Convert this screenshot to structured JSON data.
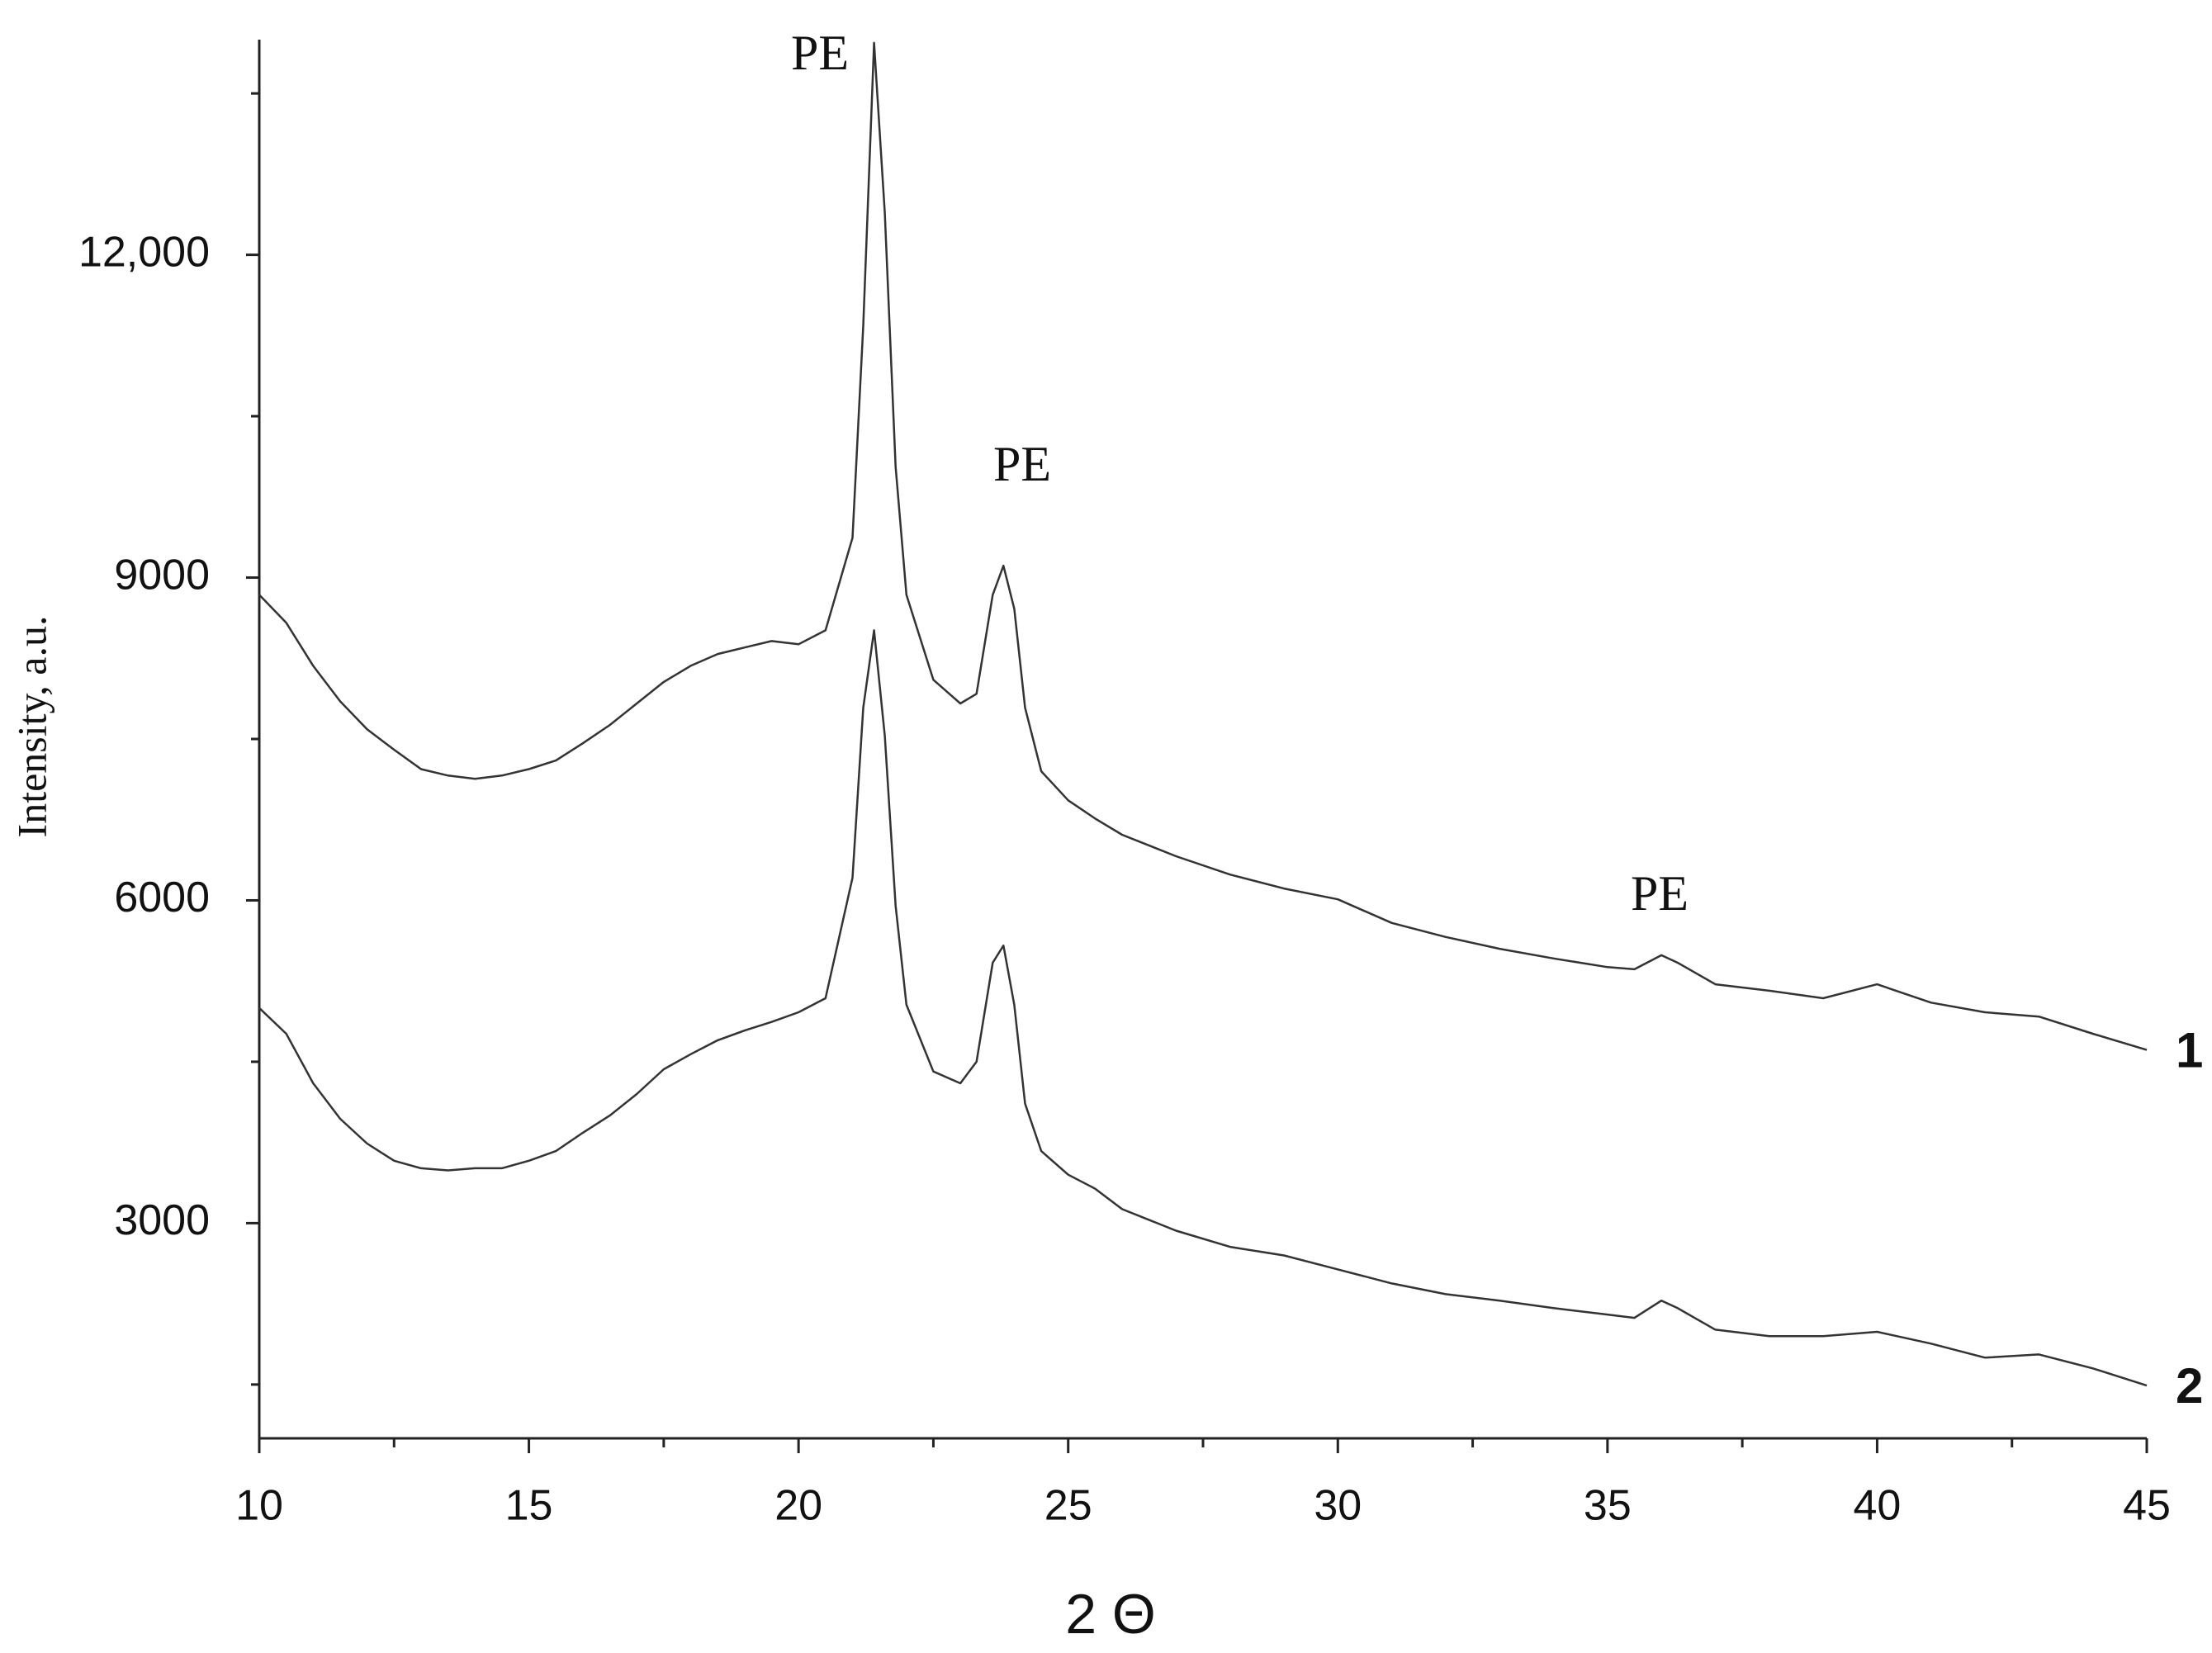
{
  "chart_data": {
    "type": "line",
    "x_label": "2 Θ",
    "y_label": "Intensity, a.u.",
    "annotations": [
      "PE",
      "PE",
      "PE"
    ],
    "x": [
      10,
      10.5,
      11,
      11.5,
      12,
      12.5,
      13,
      13.5,
      14,
      14.5,
      15,
      15.5,
      16,
      16.5,
      17,
      17.5,
      18,
      18.5,
      19,
      19.5,
      20,
      20.5,
      21,
      21.2,
      21.4,
      21.6,
      21.8,
      22,
      22.5,
      23,
      23.3,
      23.6,
      23.8,
      24,
      24.2,
      24.5,
      25,
      25.5,
      26,
      27,
      28,
      29,
      30,
      31,
      32,
      33,
      34,
      35,
      35.5,
      36,
      36.3,
      37,
      38,
      39,
      40,
      41,
      42,
      43,
      44,
      45
    ],
    "series": [
      {
        "name": "1",
        "color": "#333333",
        "values": [
          8840,
          8580,
          8180,
          7850,
          7590,
          7400,
          7220,
          7160,
          7130,
          7160,
          7220,
          7300,
          7460,
          7630,
          7830,
          8030,
          8180,
          8290,
          8350,
          8410,
          8380,
          8510,
          9370,
          11340,
          13970,
          12390,
          10030,
          8840,
          8050,
          7830,
          7920,
          8840,
          9110,
          8710,
          7790,
          7200,
          6930,
          6760,
          6610,
          6410,
          6240,
          6110,
          6010,
          5790,
          5660,
          5550,
          5460,
          5380,
          5360,
          5490,
          5420,
          5220,
          5160,
          5090,
          5220,
          5050,
          4960,
          4920,
          4760,
          4610
        ]
      },
      {
        "name": "2",
        "color": "#333333",
        "values": [
          5000,
          4760,
          4300,
          3970,
          3740,
          3580,
          3510,
          3490,
          3510,
          3510,
          3580,
          3670,
          3840,
          4000,
          4200,
          4430,
          4570,
          4700,
          4790,
          4870,
          4960,
          5090,
          6210,
          7790,
          8510,
          7530,
          5950,
          5030,
          4410,
          4300,
          4500,
          5420,
          5580,
          5030,
          4110,
          3670,
          3450,
          3320,
          3130,
          2930,
          2780,
          2700,
          2570,
          2440,
          2340,
          2280,
          2210,
          2150,
          2120,
          2280,
          2210,
          2010,
          1950,
          1950,
          1990,
          1880,
          1750,
          1780,
          1650,
          1490
        ]
      }
    ],
    "xlim": [
      10,
      45
    ],
    "xticks": [
      10,
      15,
      20,
      25,
      30,
      35,
      40,
      45
    ],
    "xminor_ticks": [
      12.5,
      17.5,
      22.5,
      27.5,
      32.5,
      37.5,
      42.5
    ],
    "ylim": [
      1000,
      14000
    ],
    "yticks": [
      3000,
      6000,
      9000,
      {
        "value": 12000,
        "label": "12,000"
      }
    ],
    "yminor_ticks": [
      1500,
      4500,
      7500,
      10500,
      13500
    ]
  }
}
